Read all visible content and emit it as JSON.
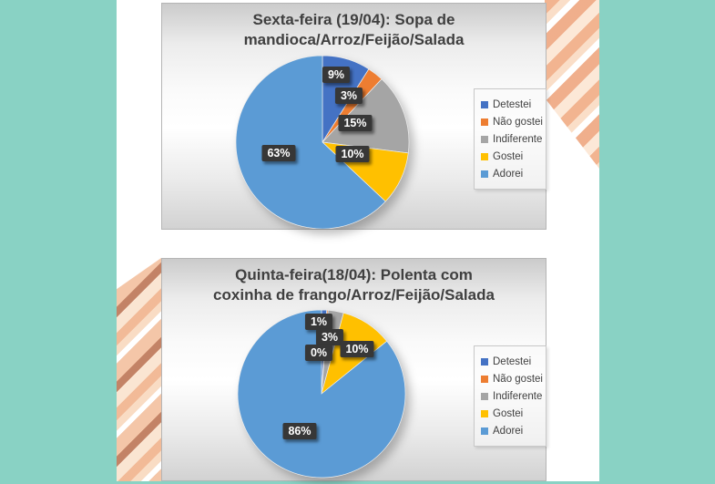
{
  "theme": {
    "background_teal": "#89d2c4",
    "panel_white": "#ffffff",
    "chart_gray_top": "#cbcbcb",
    "brush_peach": [
      "#f6cfae",
      "#efb28c",
      "#f8dcc8",
      "#c07c5e"
    ],
    "label_box_bg": "#373737",
    "label_text": "#ffffff",
    "title_text": "#3f3f3f"
  },
  "chart_data": [
    {
      "type": "pie",
      "title": "Sexta-feira (19/04): Sopa de mandioca/Arroz/Feijão/Salada",
      "title_lines": [
        "Sexta-feira (19/04): Sopa de",
        "mandioca/Arroz/Feijão/Salada"
      ],
      "categories": [
        "Detestei",
        "Não gostei",
        "Indiferente",
        "Gostei",
        "Adorei"
      ],
      "values": [
        9,
        3,
        15,
        10,
        63
      ],
      "labels": [
        "9%",
        "3%",
        "15%",
        "10%",
        "63%"
      ],
      "colors": [
        "#4472C4",
        "#ED7D31",
        "#A5A5A5",
        "#FFC000",
        "#5B9BD5"
      ],
      "legend_position": "right",
      "start_angle_deg": 0,
      "direction": "clockwise"
    },
    {
      "type": "pie",
      "title": "Quinta-feira(18/04): Polenta com coxinha de frango/Arroz/Feijão/Salada",
      "title_lines": [
        "Quinta-feira(18/04): Polenta com",
        "coxinha de frango/Arroz/Feijão/Salada"
      ],
      "categories": [
        "Detestei",
        "Não gostei",
        "Indiferente",
        "Gostei",
        "Adorei"
      ],
      "values": [
        1,
        0,
        3,
        10,
        86
      ],
      "labels": [
        "1%",
        "0%",
        "3%",
        "10%",
        "86%"
      ],
      "colors": [
        "#4472C4",
        "#ED7D31",
        "#A5A5A5",
        "#FFC000",
        "#5B9BD5"
      ],
      "legend_position": "right",
      "start_angle_deg": 0,
      "direction": "clockwise"
    }
  ]
}
